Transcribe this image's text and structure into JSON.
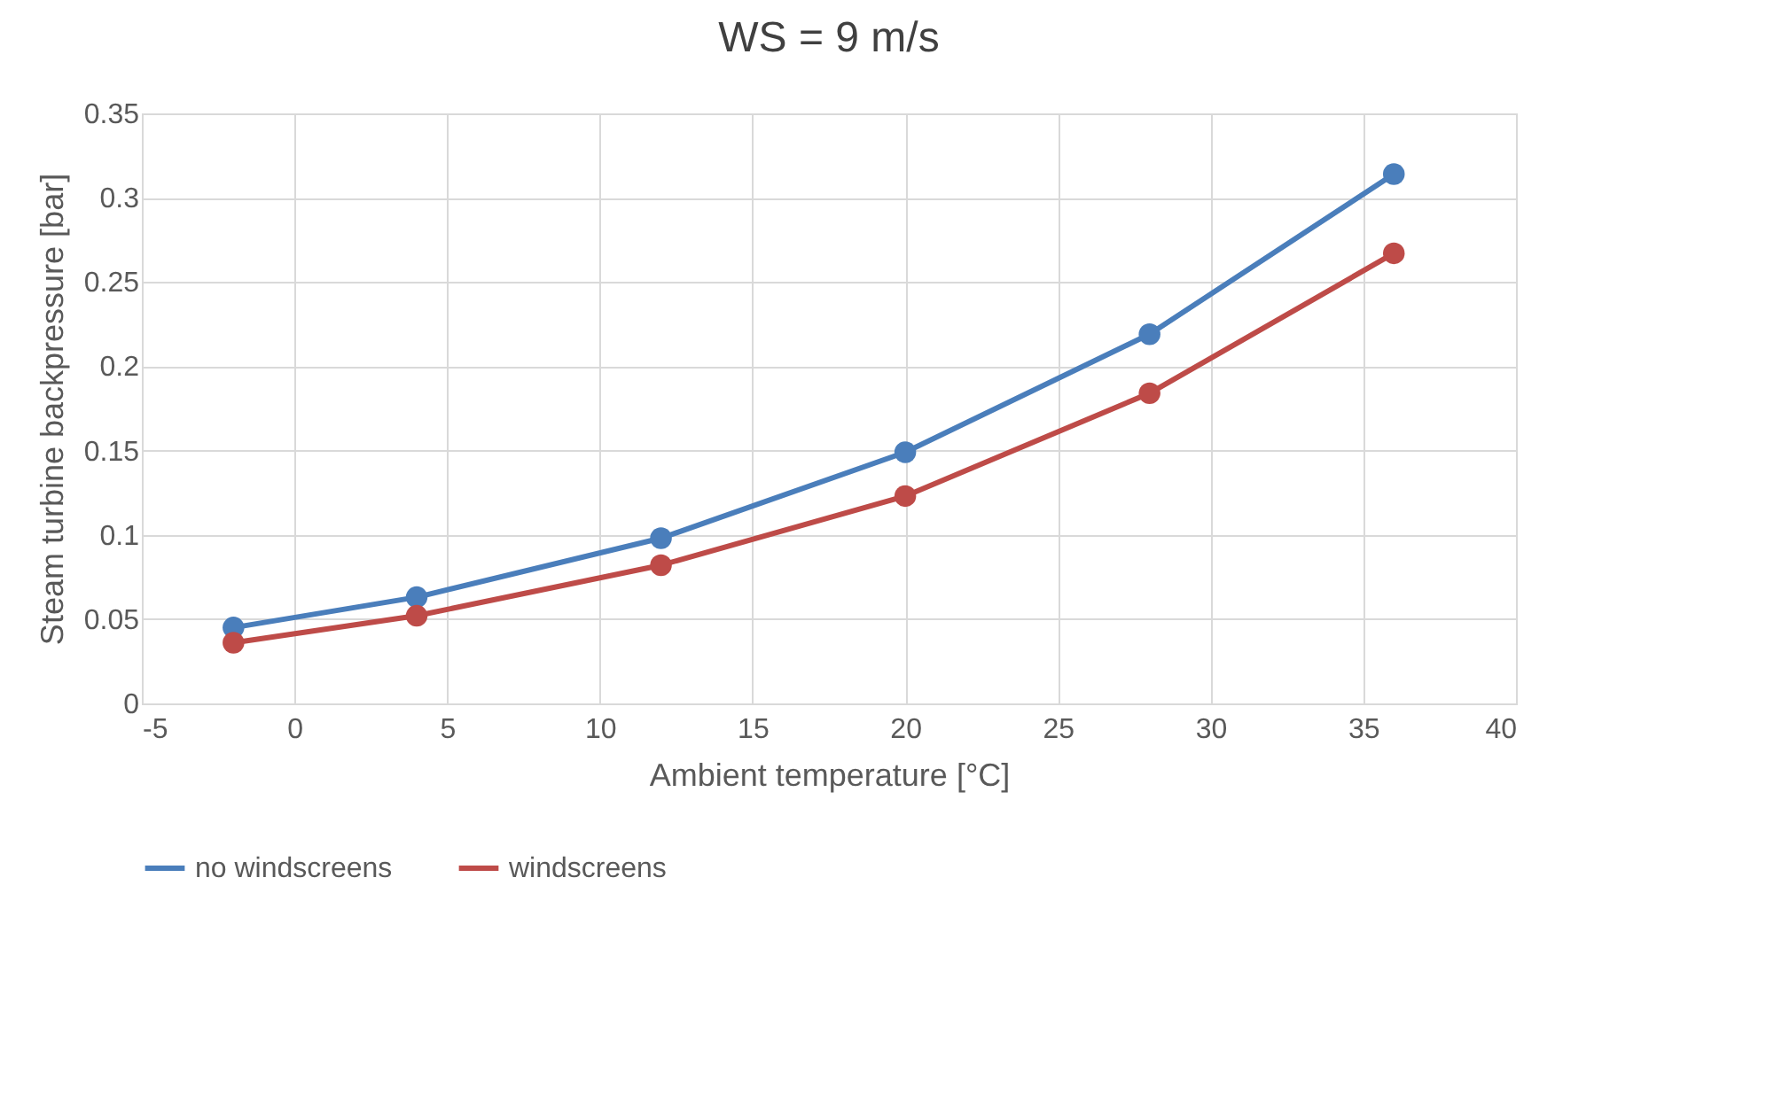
{
  "chart_data": {
    "type": "line",
    "title": "WS = 9 m/s",
    "xlabel": "Ambient temperature [°C]",
    "ylabel": "Steam turbine backpressure [bar]",
    "x": [
      -2,
      4,
      12,
      20,
      28,
      36
    ],
    "series": [
      {
        "name": "no windscreens",
        "color": "#4a7ebb",
        "values": [
          0.045,
          0.063,
          0.098,
          0.149,
          0.219,
          0.314
        ]
      },
      {
        "name": "windscreens",
        "color": "#be4b48",
        "values": [
          0.036,
          0.052,
          0.082,
          0.123,
          0.184,
          0.267
        ]
      }
    ],
    "xlim": [
      -5,
      40
    ],
    "xticks": [
      -5,
      0,
      5,
      10,
      15,
      20,
      25,
      30,
      35,
      40
    ],
    "ylim": [
      0,
      0.35
    ],
    "yticks": [
      0,
      0.05,
      0.1,
      0.15,
      0.2,
      0.25,
      0.3,
      0.35
    ],
    "grid": true,
    "legend": "bottom",
    "marker": "circle",
    "line_style": "solid"
  }
}
